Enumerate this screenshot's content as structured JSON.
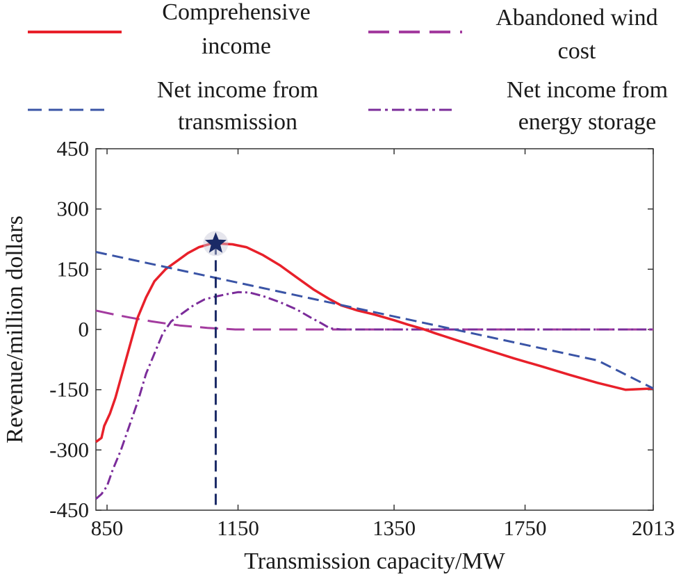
{
  "chart_data": {
    "type": "line",
    "xlabel": "Transmission capacity/MW",
    "ylabel": "Revenue/million dollars",
    "xlim": [
      800,
      2013
    ],
    "ylim": [
      -450,
      450
    ],
    "x_ticks": [
      {
        "value": 850,
        "label": "850"
      },
      {
        "value": 1150,
        "label": "1150"
      },
      {
        "value": 1350,
        "label": "1350"
      },
      {
        "value": 1750,
        "label": "1750"
      },
      {
        "value": 2013,
        "label": "2013"
      }
    ],
    "x_tick_positions": [
      {
        "label": "850",
        "pos": 0.02
      },
      {
        "label": "1150",
        "pos": 0.255
      },
      {
        "label": "1350",
        "pos": 0.535
      },
      {
        "label": "1750",
        "pos": 0.77
      },
      {
        "label": "2013",
        "pos": 1.0
      }
    ],
    "y_ticks": [
      450,
      300,
      150,
      0,
      -150,
      -300,
      -450
    ],
    "y_tick_labels": [
      "450",
      "300",
      "150",
      "0",
      "-150",
      "-300",
      "-450"
    ],
    "series": [
      {
        "name": "Comprehensive income",
        "label_lines": [
          "Comprehensive",
          "income"
        ],
        "color": "#e8202a",
        "style": "solid",
        "points": [
          [
            0.0,
            -280
          ],
          [
            0.005,
            -275
          ],
          [
            0.01,
            -270
          ],
          [
            0.015,
            -240
          ],
          [
            0.025,
            -210
          ],
          [
            0.035,
            -170
          ],
          [
            0.045,
            -120
          ],
          [
            0.055,
            -70
          ],
          [
            0.065,
            -20
          ],
          [
            0.075,
            30
          ],
          [
            0.09,
            80
          ],
          [
            0.105,
            120
          ],
          [
            0.125,
            150
          ],
          [
            0.145,
            170
          ],
          [
            0.165,
            190
          ],
          [
            0.185,
            205
          ],
          [
            0.205,
            213
          ],
          [
            0.22,
            214
          ],
          [
            0.245,
            212
          ],
          [
            0.27,
            205
          ],
          [
            0.3,
            185
          ],
          [
            0.33,
            160
          ],
          [
            0.36,
            130
          ],
          [
            0.39,
            100
          ],
          [
            0.42,
            75
          ],
          [
            0.44,
            60
          ],
          [
            0.47,
            47
          ],
          [
            0.5,
            37
          ],
          [
            0.535,
            23
          ],
          [
            0.56,
            12
          ],
          [
            0.585,
            2
          ],
          [
            0.61,
            -10
          ],
          [
            0.65,
            -28
          ],
          [
            0.7,
            -50
          ],
          [
            0.75,
            -72
          ],
          [
            0.8,
            -92
          ],
          [
            0.85,
            -113
          ],
          [
            0.9,
            -133
          ],
          [
            0.95,
            -150
          ],
          [
            1.0,
            -147
          ]
        ]
      },
      {
        "name": "Net income from transmission",
        "label_lines": [
          "Net income from",
          "transmission"
        ],
        "color": "#3a54a6",
        "style": "dash",
        "points": [
          [
            0.0,
            193
          ],
          [
            0.1,
            163
          ],
          [
            0.2,
            133
          ],
          [
            0.3,
            103
          ],
          [
            0.4,
            73
          ],
          [
            0.5,
            43
          ],
          [
            0.6,
            13
          ],
          [
            0.7,
            -17
          ],
          [
            0.8,
            -47
          ],
          [
            0.9,
            -77
          ],
          [
            1.0,
            -147
          ]
        ]
      },
      {
        "name": "Abandoned wind cost",
        "label_lines": [
          "Abandoned wind",
          "cost"
        ],
        "color": "#a33b9f",
        "style": "longdash",
        "points": [
          [
            0.0,
            47
          ],
          [
            0.03,
            38
          ],
          [
            0.06,
            30
          ],
          [
            0.1,
            20
          ],
          [
            0.15,
            10
          ],
          [
            0.2,
            4
          ],
          [
            0.25,
            0
          ],
          [
            0.3,
            0
          ],
          [
            0.5,
            0
          ],
          [
            0.7,
            0
          ],
          [
            0.85,
            0
          ],
          [
            1.0,
            0
          ]
        ]
      },
      {
        "name": "Net income from energy storage",
        "label_lines": [
          "Net income from",
          "energy storage"
        ],
        "color": "#7b2c9a",
        "style": "dashdot",
        "points": [
          [
            0.0,
            -422
          ],
          [
            0.01,
            -410
          ],
          [
            0.02,
            -390
          ],
          [
            0.03,
            -350
          ],
          [
            0.045,
            -300
          ],
          [
            0.06,
            -240
          ],
          [
            0.075,
            -180
          ],
          [
            0.09,
            -110
          ],
          [
            0.105,
            -60
          ],
          [
            0.12,
            -10
          ],
          [
            0.135,
            20
          ],
          [
            0.155,
            40
          ],
          [
            0.175,
            60
          ],
          [
            0.195,
            75
          ],
          [
            0.215,
            82
          ],
          [
            0.235,
            88
          ],
          [
            0.255,
            93
          ],
          [
            0.275,
            92
          ],
          [
            0.3,
            83
          ],
          [
            0.33,
            68
          ],
          [
            0.36,
            50
          ],
          [
            0.385,
            30
          ],
          [
            0.405,
            15
          ],
          [
            0.42,
            3
          ],
          [
            0.44,
            0
          ],
          [
            0.6,
            0
          ],
          [
            0.8,
            0
          ],
          [
            1.0,
            0
          ]
        ]
      }
    ],
    "annotations": [
      {
        "type": "star-marker",
        "x_pos": 0.215,
        "y": 214,
        "color": "#1a2a66"
      },
      {
        "type": "vertical-dashed-line",
        "x_pos": 0.215,
        "from_y": 214,
        "to_y": -450,
        "color": "#1a2a66"
      }
    ],
    "legend_position": "top",
    "grid": false
  }
}
